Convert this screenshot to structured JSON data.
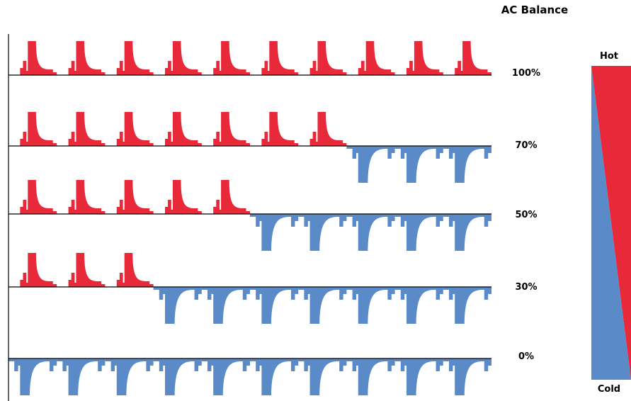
{
  "title": "AC Balance",
  "colors": {
    "hot": "#e8293a",
    "cold": "#5b8ac8",
    "axis": "#000000"
  },
  "rows": [
    {
      "label": "100%",
      "balance": 1.0
    },
    {
      "label": "70%",
      "balance": 0.7
    },
    {
      "label": "50%",
      "balance": 0.5
    },
    {
      "label": "30%",
      "balance": 0.3
    },
    {
      "label": "0%",
      "balance": 0.0
    }
  ],
  "legend": {
    "hot_label": "Hot",
    "cold_label": "Cold"
  },
  "cycles_per_row": 10
}
